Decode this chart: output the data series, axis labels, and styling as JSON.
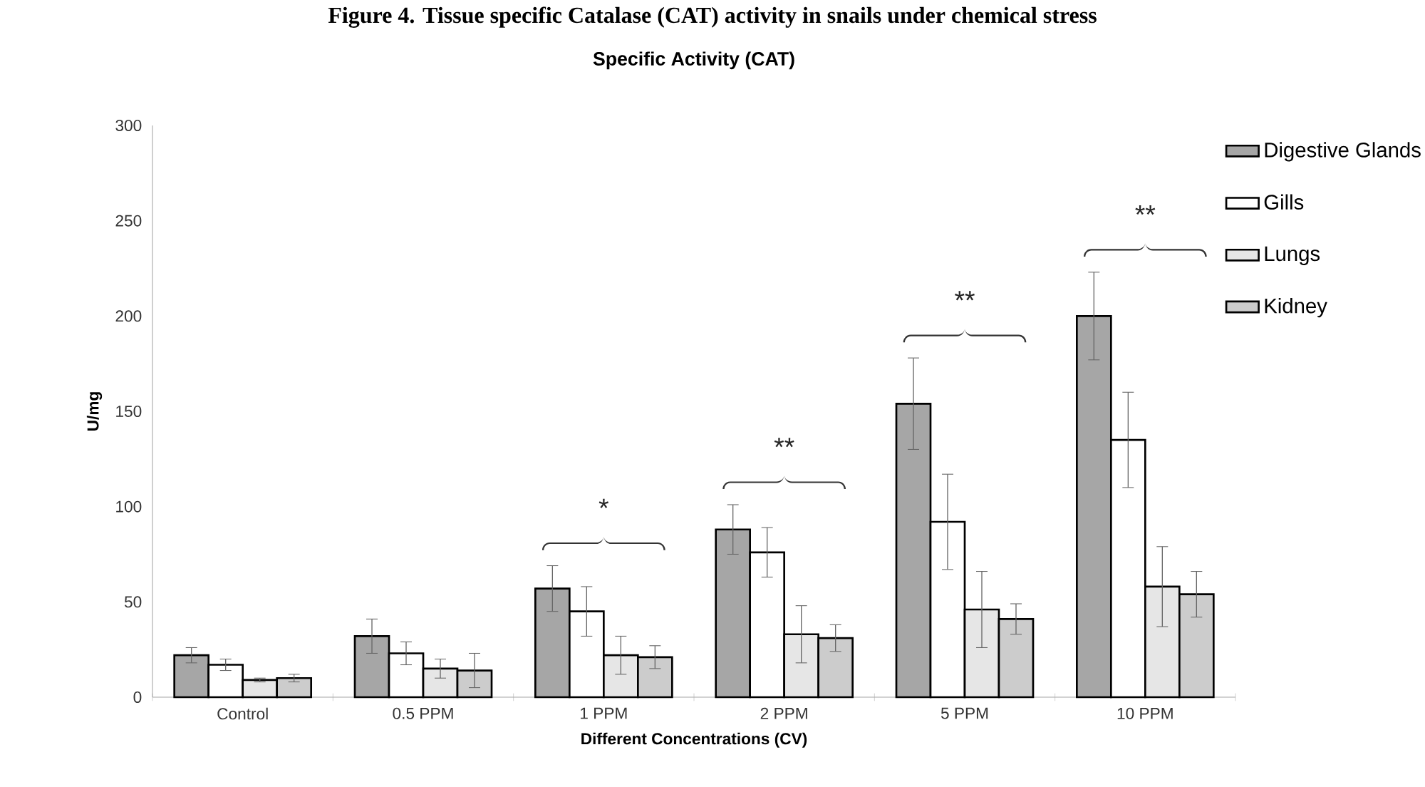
{
  "chart_data": {
    "type": "bar",
    "title": "Specific Activity (CAT)",
    "xlabel": "Different Concentrations (CV)",
    "ylabel": "U/mg",
    "categories": [
      "Control",
      "0.5 PPM",
      "1 PPM",
      "2 PPM",
      "5 PPM",
      "10 PPM"
    ],
    "series": [
      {
        "name": "Digestive Glands",
        "color": "#a6a6a6",
        "values": [
          22,
          32,
          57,
          88,
          154,
          200
        ],
        "errors": [
          4,
          9,
          12,
          13,
          24,
          23
        ]
      },
      {
        "name": "Gills",
        "color": "#ffffff",
        "values": [
          17,
          23,
          45,
          76,
          92,
          135
        ],
        "errors": [
          3,
          6,
          13,
          13,
          25,
          25
        ]
      },
      {
        "name": "Lungs",
        "color": "#e6e6e6",
        "values": [
          9,
          15,
          22,
          33,
          46,
          58
        ],
        "errors": [
          1,
          5,
          10,
          15,
          20,
          21
        ]
      },
      {
        "name": "Kidney",
        "color": "#cccccc",
        "values": [
          10,
          14,
          21,
          31,
          41,
          54
        ],
        "errors": [
          2,
          9,
          6,
          7,
          8,
          12
        ]
      }
    ],
    "ylim": [
      0,
      300
    ],
    "yticks": [
      0,
      50,
      100,
      150,
      200,
      250,
      300
    ],
    "grid": false,
    "legend": "top right",
    "annotations": [
      "Figure 4. Tissue specific Catalase (CAT) activity in snails under chemical stress",
      "*",
      "**",
      "**",
      "**"
    ]
  }
}
